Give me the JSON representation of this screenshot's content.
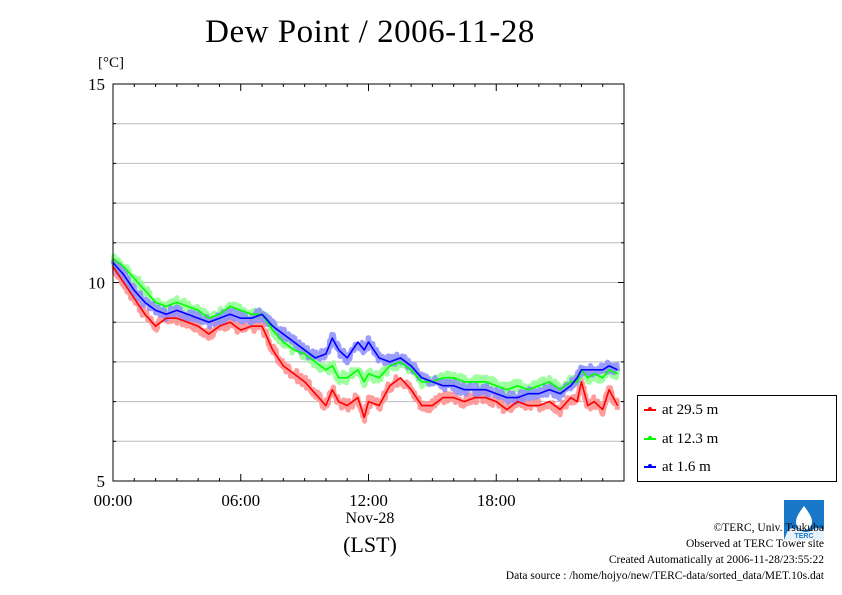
{
  "title": "Dew Point / 2006-11-28",
  "y_unit": "[°C]",
  "date_label": "Nov-28",
  "x_axis_label": "(LST)",
  "credits": {
    "copyright": "©TERC, Univ. Tsukuba",
    "site": "Observed at TERC Tower site",
    "created": "Created Automatically at 2006-11-28/23:55:22",
    "source": "Data source : /home/hojyo/new/TERC-data/sorted_data/MET.10s.dat"
  },
  "logo_text": "TERC",
  "chart_data": {
    "type": "line",
    "title": "Dew Point / 2006-11-28",
    "ylabel": "[°C]",
    "xlabel": "(LST)",
    "xlim": [
      0,
      24
    ],
    "ylim": [
      5,
      15
    ],
    "x_ticks": [
      "00:00",
      "06:00",
      "12:00",
      "18:00"
    ],
    "x_tick_values": [
      0,
      6,
      12,
      18
    ],
    "y_ticks": [
      5,
      10,
      15
    ],
    "grid": true,
    "legend_position": "right",
    "series": [
      {
        "name": "at 29.5 m",
        "color": "#ff0000",
        "x": [
          0.0,
          0.5,
          1.0,
          1.5,
          2.0,
          2.5,
          3.0,
          3.5,
          4.0,
          4.5,
          5.0,
          5.5,
          6.0,
          6.5,
          7.0,
          7.5,
          8.0,
          8.5,
          9.0,
          9.5,
          10.0,
          10.3,
          10.6,
          11.0,
          11.5,
          11.8,
          12.0,
          12.5,
          13.0,
          13.5,
          14.0,
          14.5,
          15.0,
          15.5,
          16.0,
          16.5,
          17.0,
          17.5,
          18.0,
          18.5,
          19.0,
          19.5,
          20.0,
          20.5,
          21.0,
          21.5,
          21.8,
          22.0,
          22.3,
          22.6,
          23.0,
          23.3,
          23.7
        ],
        "values": [
          10.4,
          10.0,
          9.6,
          9.2,
          8.9,
          9.1,
          9.1,
          9.0,
          8.9,
          8.7,
          8.9,
          9.0,
          8.8,
          8.9,
          8.9,
          8.3,
          7.9,
          7.7,
          7.5,
          7.2,
          6.9,
          7.3,
          7.0,
          6.9,
          7.1,
          6.6,
          7.0,
          6.9,
          7.4,
          7.6,
          7.3,
          6.9,
          6.9,
          7.1,
          7.1,
          7.0,
          7.1,
          7.1,
          7.0,
          6.8,
          7.0,
          6.9,
          6.9,
          7.0,
          6.8,
          7.1,
          7.0,
          7.5,
          6.9,
          7.0,
          6.8,
          7.3,
          6.9
        ]
      },
      {
        "name": "at 12.3 m",
        "color": "#00ff00",
        "x": [
          0.0,
          0.5,
          1.0,
          1.5,
          2.0,
          2.5,
          3.0,
          3.5,
          4.0,
          4.5,
          5.0,
          5.5,
          6.0,
          6.5,
          7.0,
          7.5,
          8.0,
          8.5,
          9.0,
          9.5,
          10.0,
          10.3,
          10.6,
          11.0,
          11.5,
          11.8,
          12.0,
          12.5,
          13.0,
          13.5,
          14.0,
          14.5,
          15.0,
          15.5,
          16.0,
          16.5,
          17.0,
          17.5,
          18.0,
          18.5,
          19.0,
          19.5,
          20.0,
          20.5,
          21.0,
          21.5,
          21.8,
          22.0,
          22.3,
          22.6,
          23.0,
          23.3,
          23.7
        ],
        "values": [
          10.6,
          10.4,
          10.1,
          9.8,
          9.5,
          9.4,
          9.5,
          9.4,
          9.3,
          9.1,
          9.2,
          9.4,
          9.3,
          9.2,
          9.2,
          8.8,
          8.5,
          8.3,
          8.2,
          8.0,
          7.8,
          7.9,
          7.6,
          7.6,
          7.8,
          7.5,
          7.7,
          7.6,
          7.9,
          8.0,
          7.8,
          7.5,
          7.5,
          7.6,
          7.6,
          7.5,
          7.5,
          7.5,
          7.4,
          7.3,
          7.4,
          7.3,
          7.4,
          7.5,
          7.3,
          7.5,
          7.5,
          7.8,
          7.6,
          7.7,
          7.6,
          7.8,
          7.7
        ]
      },
      {
        "name": "at 1.6 m",
        "color": "#0000ff",
        "x": [
          0.0,
          0.5,
          1.0,
          1.5,
          2.0,
          2.5,
          3.0,
          3.5,
          4.0,
          4.5,
          5.0,
          5.5,
          6.0,
          6.5,
          7.0,
          7.5,
          8.0,
          8.5,
          9.0,
          9.5,
          10.0,
          10.3,
          10.6,
          11.0,
          11.5,
          11.8,
          12.0,
          12.5,
          13.0,
          13.5,
          14.0,
          14.5,
          15.0,
          15.5,
          16.0,
          16.5,
          17.0,
          17.5,
          18.0,
          18.5,
          19.0,
          19.5,
          20.0,
          20.5,
          21.0,
          21.5,
          21.8,
          22.0,
          22.3,
          22.6,
          23.0,
          23.3,
          23.7
        ],
        "values": [
          10.5,
          10.2,
          9.8,
          9.5,
          9.3,
          9.2,
          9.3,
          9.2,
          9.1,
          9.0,
          9.1,
          9.2,
          9.1,
          9.1,
          9.2,
          8.9,
          8.7,
          8.5,
          8.3,
          8.1,
          8.2,
          8.6,
          8.3,
          8.1,
          8.5,
          8.3,
          8.5,
          8.1,
          8.0,
          8.1,
          7.9,
          7.6,
          7.5,
          7.4,
          7.4,
          7.3,
          7.3,
          7.3,
          7.2,
          7.1,
          7.1,
          7.2,
          7.2,
          7.3,
          7.2,
          7.4,
          7.6,
          7.8,
          7.8,
          7.8,
          7.8,
          7.9,
          7.8
        ]
      }
    ]
  }
}
